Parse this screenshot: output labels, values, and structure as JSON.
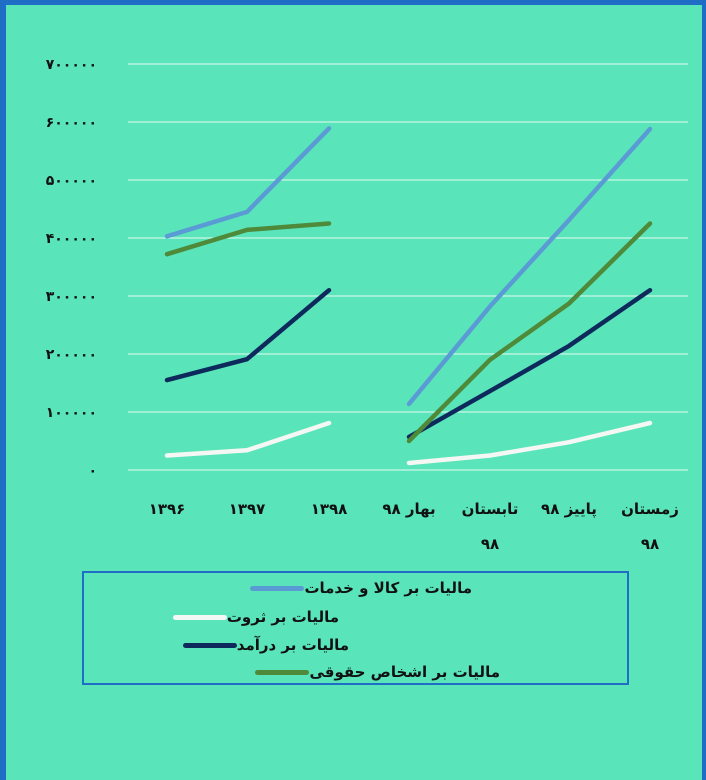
{
  "chart_data": {
    "type": "line",
    "y_ticks": [
      "۷۰۰۰۰۰",
      "۶۰۰۰۰۰",
      "۵۰۰۰۰۰",
      "۴۰۰۰۰۰",
      "۳۰۰۰۰۰",
      "۲۰۰۰۰۰",
      "۱۰۰۰۰۰",
      "۰"
    ],
    "ylim": [
      0,
      700000
    ],
    "grid": true,
    "categories": [
      "۱۳۹۶",
      "۱۳۹۷",
      "۱۳۹۸",
      "بهار ۹۸",
      "تابستان ۹۸",
      "پاییز ۹۸",
      "زمستان ۹۸"
    ],
    "category_lines": [
      [
        "۱۳۹۶"
      ],
      [
        "۱۳۹۷"
      ],
      [
        "۱۳۹۸"
      ],
      [
        "بهار ۹۸"
      ],
      [
        "تابستان",
        "۹۸"
      ],
      [
        "پاییز ۹۸"
      ],
      [
        "زمستان",
        "۹۸"
      ]
    ],
    "segments": [
      [
        0,
        1,
        2
      ],
      [
        3,
        4,
        5,
        6
      ]
    ],
    "series": [
      {
        "name": "مالیات بر کالا و خدمات",
        "color": "#5b9bd5",
        "values": [
          403000,
          445000,
          589000,
          114000,
          282000,
          431000,
          588000
        ]
      },
      {
        "name": "مالیات بر ثروت",
        "color": "#f5f7f5",
        "values": [
          25000,
          34000,
          81000,
          12000,
          25000,
          48000,
          81000
        ]
      },
      {
        "name": "مالیات بر درآمد",
        "color": "#0e2a5c",
        "values": [
          155000,
          191000,
          310000,
          57000,
          136000,
          214000,
          310000
        ]
      },
      {
        "name": "مالیات بر اشخاص حقوقی",
        "color": "#4e8a3a",
        "values": [
          372000,
          414000,
          425000,
          50000,
          190000,
          287000,
          425000
        ]
      }
    ],
    "legend_position": "bottom"
  }
}
